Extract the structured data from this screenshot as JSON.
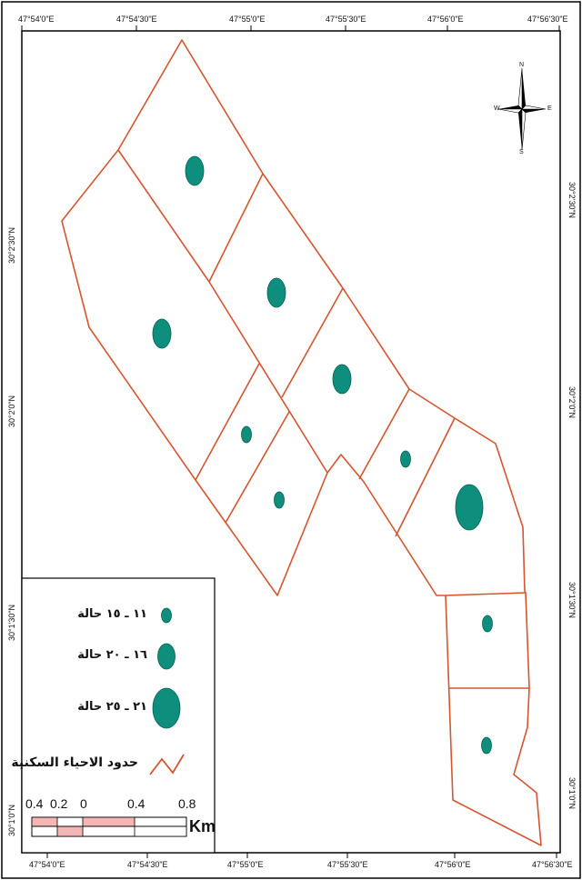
{
  "map": {
    "top_coords": [
      "47°54'0\"E",
      "47°54'30\"E",
      "47°55'0\"E",
      "47°55'30\"E",
      "47°56'0\"E",
      "47°56'30\"E"
    ],
    "bottom_coords": [
      "47°54'0\"E",
      "47°54'30\"E",
      "47°55'0\"E",
      "47°55'30\"E",
      "47°56'0\"E",
      "47°56'30\"E"
    ],
    "left_coords": [
      "30°2'30\"N",
      "30°2'0\"N",
      "30°1'30\"N",
      "30°1'0\"N"
    ],
    "right_coords": [
      "30°2'30\"N",
      "30°2'0\"N",
      "30°1'30\"N",
      "30°1'0\"N"
    ],
    "boundary_color": "#d4552f",
    "circle_color": "#0e8f7d"
  },
  "legend": {
    "items": [
      {
        "label": "١١ ـ ١٥ حالة",
        "size": "small"
      },
      {
        "label": "١٦ ـ ٢٠ حالة",
        "size": "medium"
      },
      {
        "label": "٢١ ـ ٢٥ حالة",
        "size": "large"
      }
    ],
    "boundary_label": "حدود الاحياء السكنية"
  },
  "scale_bar": {
    "ticks": [
      "0.4",
      "0.2",
      "0",
      "0.4",
      "0.8"
    ],
    "unit": "Km"
  },
  "compass": {
    "n": "N",
    "s": "S",
    "e": "E",
    "w": "W"
  }
}
